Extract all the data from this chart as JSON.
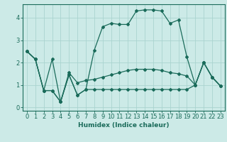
{
  "xlabel": "Humidex (Indice chaleur)",
  "bg_color": "#cceae7",
  "grid_color": "#aad4d0",
  "line_color": "#1a6b5a",
  "xlim": [
    -0.5,
    23.5
  ],
  "ylim": [
    -0.15,
    4.6
  ],
  "yticks": [
    0,
    1,
    2,
    3,
    4
  ],
  "xticks": [
    0,
    1,
    2,
    3,
    4,
    5,
    6,
    7,
    8,
    9,
    10,
    11,
    12,
    13,
    14,
    15,
    16,
    17,
    18,
    19,
    20,
    21,
    22,
    23
  ],
  "x": [
    0,
    1,
    2,
    3,
    4,
    5,
    6,
    7,
    8,
    9,
    10,
    11,
    12,
    13,
    14,
    15,
    16,
    17,
    18,
    19,
    20,
    21,
    22,
    23
  ],
  "line1_y": [
    2.5,
    2.15,
    0.75,
    0.75,
    0.25,
    1.45,
    0.55,
    0.8,
    2.55,
    3.6,
    3.75,
    3.7,
    3.7,
    4.3,
    4.35,
    4.35,
    4.3,
    3.75,
    3.9,
    2.25,
    1.0,
    2.0,
    1.35,
    0.95
  ],
  "line2_y": [
    2.5,
    2.15,
    0.75,
    2.15,
    0.25,
    1.55,
    1.1,
    1.2,
    1.25,
    1.35,
    1.45,
    1.55,
    1.65,
    1.7,
    1.7,
    1.7,
    1.65,
    1.55,
    1.5,
    1.4,
    1.0,
    2.0,
    1.35,
    0.95
  ],
  "line3_y": [
    2.5,
    2.15,
    0.75,
    0.75,
    0.25,
    1.45,
    0.55,
    0.8,
    0.8,
    0.8,
    0.8,
    0.8,
    0.8,
    0.8,
    0.8,
    0.8,
    0.8,
    0.8,
    0.8,
    0.8,
    1.0,
    2.0,
    1.35,
    0.95
  ]
}
